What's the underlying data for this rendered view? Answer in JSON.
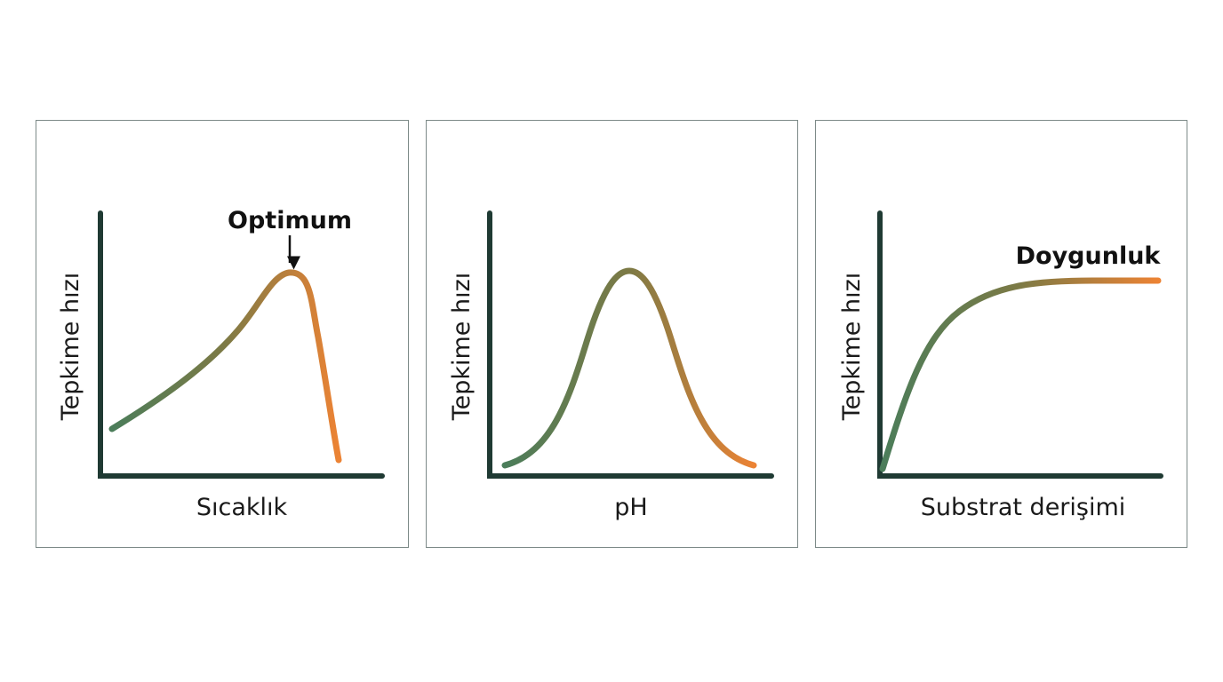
{
  "panels": [
    {
      "y_label": "Tepkime hızı",
      "x_label": "Sıcaklık",
      "annotation": "Optimum"
    },
    {
      "y_label": "Tepkime hızı",
      "x_label": "pH"
    },
    {
      "y_label": "Tepkime hızı",
      "x_label": "Substrat derişimi",
      "annotation": "Doygunluk"
    }
  ]
}
